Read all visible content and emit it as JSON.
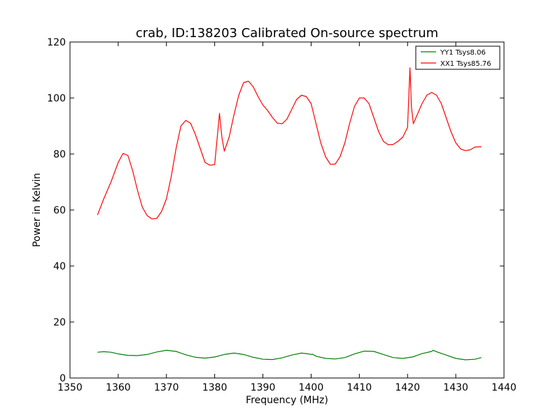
{
  "chart_data": {
    "type": "line",
    "title": "crab, ID:138203 Calibrated On-source spectrum",
    "xlabel": "Frequency (MHz)",
    "ylabel": "Power in Kelvin",
    "xlim": [
      1350,
      1440
    ],
    "ylim": [
      0,
      120
    ],
    "xticks": [
      1350,
      1360,
      1370,
      1380,
      1390,
      1400,
      1410,
      1420,
      1430,
      1440
    ],
    "yticks": [
      0,
      20,
      40,
      60,
      80,
      100,
      120
    ],
    "grid": false,
    "legend_position": "top-right",
    "series": [
      {
        "name": "YY1 Tsys8.06",
        "color": "#008000",
        "x": [
          1355.7,
          1357,
          1358.5,
          1360,
          1362,
          1364,
          1366,
          1368,
          1370,
          1372,
          1374,
          1376,
          1378,
          1380,
          1382,
          1384,
          1386,
          1388,
          1390,
          1392,
          1394,
          1396,
          1398,
          1399.5,
          1400,
          1400.3,
          1401,
          1403,
          1405,
          1407,
          1409,
          1411,
          1413,
          1415,
          1417,
          1419,
          1421,
          1423,
          1425,
          1425.3,
          1426,
          1428,
          1430,
          1432,
          1434,
          1435.3
        ],
        "y": [
          9.2,
          9.4,
          9.2,
          8.6,
          8.1,
          8.0,
          8.4,
          9.3,
          9.9,
          9.5,
          8.3,
          7.4,
          7.1,
          7.5,
          8.4,
          8.9,
          8.4,
          7.4,
          6.7,
          6.6,
          7.2,
          8.2,
          8.9,
          8.6,
          8.4,
          8.5,
          7.8,
          7.0,
          6.8,
          7.3,
          8.6,
          9.6,
          9.5,
          8.4,
          7.3,
          7.0,
          7.5,
          8.7,
          9.5,
          9.9,
          9.4,
          8.2,
          7.0,
          6.5,
          6.7,
          7.3
        ]
      },
      {
        "name": "XX1 Tsys85.76",
        "color": "#ff0000",
        "x": [
          1355.7,
          1357,
          1358.5,
          1360,
          1361,
          1362,
          1363,
          1364,
          1365,
          1366,
          1367,
          1368,
          1369,
          1370,
          1371,
          1372,
          1373,
          1374,
          1375,
          1376,
          1377,
          1378,
          1379,
          1380,
          1381,
          1381.5,
          1382,
          1383,
          1384,
          1385,
          1386,
          1387,
          1388,
          1389,
          1390,
          1391,
          1392,
          1393,
          1394,
          1395,
          1396,
          1397,
          1398,
          1399,
          1400,
          1401,
          1402,
          1403,
          1404,
          1405,
          1406,
          1407,
          1408,
          1409,
          1410,
          1411,
          1412,
          1413,
          1414,
          1415,
          1416,
          1417,
          1418,
          1419,
          1420,
          1420.5,
          1420.8,
          1421.2,
          1422,
          1423,
          1424,
          1425,
          1426,
          1427,
          1428,
          1429,
          1430,
          1431,
          1432,
          1433,
          1434,
          1435.3
        ],
        "y": [
          58.2,
          64,
          70,
          77,
          80.2,
          79.5,
          74,
          67,
          61,
          58,
          56.8,
          57,
          59.5,
          64,
          72,
          82,
          90,
          92,
          91,
          87,
          82,
          77,
          76,
          76.2,
          94.5,
          86,
          81,
          86,
          94,
          101,
          105.5,
          106,
          104,
          100.5,
          97.5,
          95.5,
          93,
          91,
          90.8,
          92.5,
          96,
          99.5,
          101,
          100.5,
          98,
          91,
          84,
          79,
          76.3,
          76.4,
          79,
          84,
          91,
          97,
          100,
          100,
          98,
          93,
          88,
          84.5,
          83.3,
          83.4,
          84.5,
          86,
          89.5,
          110.8,
          97,
          90.8,
          94,
          98,
          101,
          102,
          101,
          98,
          93,
          88,
          84,
          81.8,
          81.2,
          81.5,
          82.5,
          82.6
        ]
      }
    ]
  }
}
